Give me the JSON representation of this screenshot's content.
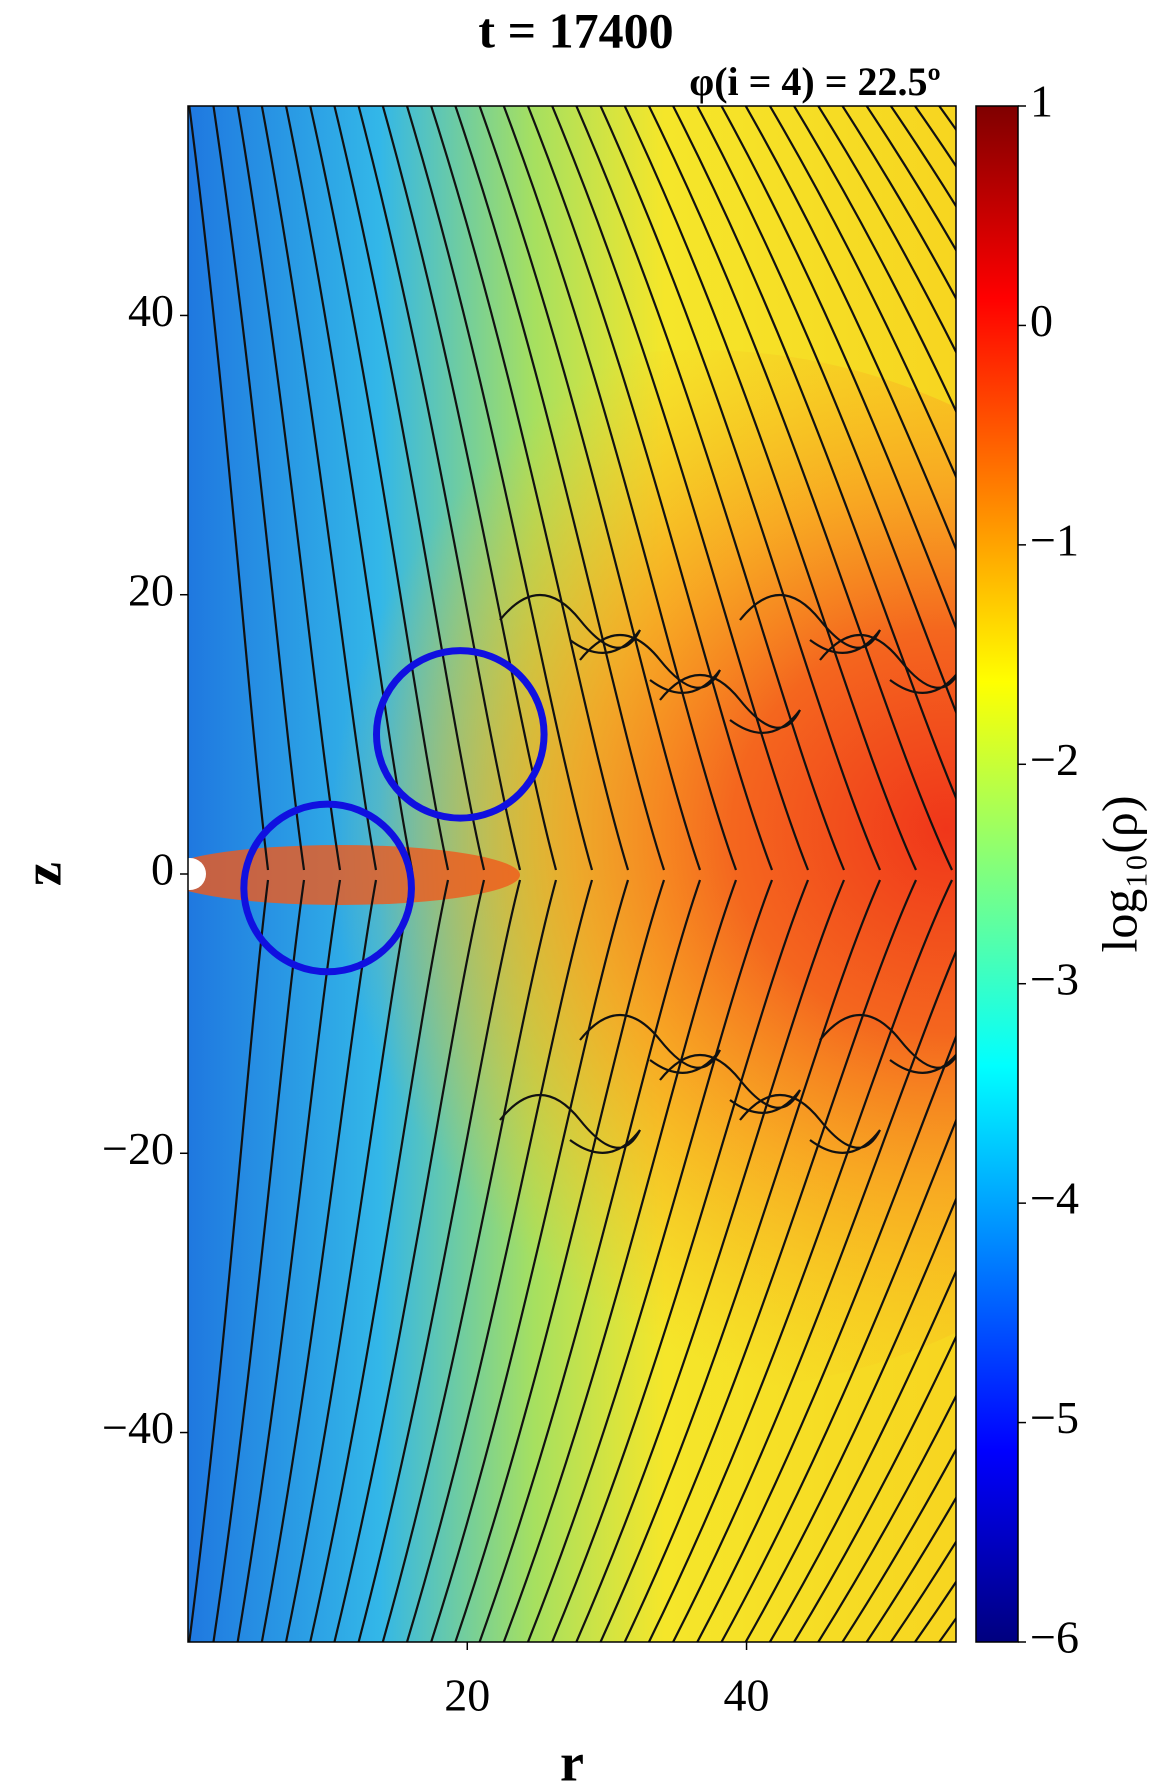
{
  "chart_data": {
    "type": "heatmap",
    "title": "t = 17400",
    "subtitle": "φ(i = 4) = 22.5º",
    "x_label": "r",
    "y_label": "z",
    "xlim": [
      0,
      55
    ],
    "xticks": [
      20,
      40
    ],
    "ylim": [
      -55,
      55
    ],
    "yticks": [
      {
        "value": -40,
        "label": "−40"
      },
      {
        "value": -20,
        "label": "−20"
      },
      0,
      20,
      40
    ],
    "colormap": "jet",
    "colorbar": {
      "label": "log₁₀(ρ)",
      "lim": [
        -6,
        1
      ],
      "ticks": [
        {
          "value": -6,
          "label": "−6"
        },
        {
          "value": -5,
          "label": "−5"
        },
        {
          "value": -4,
          "label": "−4"
        },
        {
          "value": -3,
          "label": "−3"
        },
        {
          "value": -2,
          "label": "−2"
        },
        {
          "value": -1,
          "label": "−1"
        },
        0,
        1
      ]
    },
    "circles": [
      {
        "center": [
          10,
          -1
        ],
        "radius": 6
      },
      {
        "center": [
          19.5,
          10
        ],
        "radius": 6
      }
    ],
    "circle_color": "#1010e0"
  }
}
